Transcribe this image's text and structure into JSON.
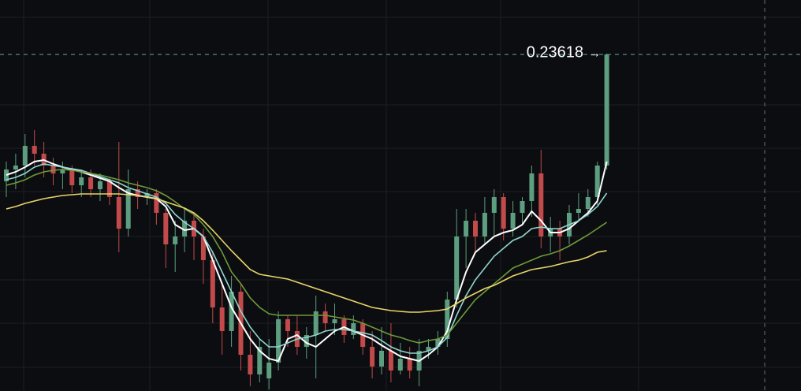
{
  "chart_data": {
    "type": "candlestick",
    "ylim": [
      0.1508,
      0.25
    ],
    "up_color": "#5e9e80",
    "down_color": "#c24a4a",
    "open": [
      0.204,
      0.207,
      0.208,
      0.213,
      0.211,
      0.208,
      0.206,
      0.207,
      0.203,
      0.205,
      0.202,
      0.204,
      0.2,
      0.192,
      0.202,
      0.2,
      0.201,
      0.196,
      0.188,
      0.19,
      0.194,
      0.19,
      0.184,
      0.172,
      0.166,
      0.176,
      0.16,
      0.155,
      0.154,
      0.158,
      0.169,
      0.166,
      0.162,
      0.165,
      0.171,
      0.168,
      0.169,
      0.165,
      0.168,
      0.162,
      0.157,
      0.161,
      0.156,
      0.159,
      0.156,
      0.161,
      0.162,
      0.164,
      0.174,
      0.19,
      0.194,
      0.19,
      0.196,
      0.2,
      0.192,
      0.196,
      0.199,
      0.206,
      0.19,
      0.192,
      0.19,
      0.196,
      0.197,
      0.2,
      0.208
    ],
    "high": [
      0.209,
      0.211,
      0.216,
      0.217,
      0.214,
      0.21,
      0.209,
      0.208,
      0.207,
      0.207,
      0.206,
      0.205,
      0.214,
      0.207,
      0.204,
      0.202,
      0.202,
      0.197,
      0.194,
      0.197,
      0.196,
      0.192,
      0.186,
      0.178,
      0.18,
      0.178,
      0.166,
      0.164,
      0.164,
      0.171,
      0.17,
      0.17,
      0.167,
      0.175,
      0.173,
      0.173,
      0.17,
      0.17,
      0.169,
      0.166,
      0.167,
      0.168,
      0.163,
      0.162,
      0.164,
      0.164,
      0.166,
      0.176,
      0.197,
      0.197,
      0.196,
      0.2,
      0.202,
      0.201,
      0.199,
      0.2,
      0.208,
      0.212,
      0.195,
      0.194,
      0.198,
      0.201,
      0.202,
      0.209,
      0.2364
    ],
    "low": [
      0.2,
      0.202,
      0.205,
      0.208,
      0.205,
      0.203,
      0.202,
      0.201,
      0.2,
      0.2,
      0.199,
      0.198,
      0.186,
      0.19,
      0.197,
      0.198,
      0.193,
      0.182,
      0.181,
      0.186,
      0.184,
      0.178,
      0.168,
      0.16,
      0.162,
      0.156,
      0.152,
      0.153,
      0.1512,
      0.156,
      0.162,
      0.16,
      0.159,
      0.154,
      0.166,
      0.165,
      0.163,
      0.164,
      0.16,
      0.154,
      0.155,
      0.153,
      0.155,
      0.154,
      0.152,
      0.159,
      0.16,
      0.162,
      0.172,
      0.182,
      0.186,
      0.188,
      0.19,
      0.189,
      0.19,
      0.193,
      0.195,
      0.187,
      0.186,
      0.184,
      0.188,
      0.194,
      0.195,
      0.198,
      0.207
    ],
    "close": [
      0.207,
      0.208,
      0.213,
      0.211,
      0.208,
      0.206,
      0.207,
      0.203,
      0.205,
      0.202,
      0.204,
      0.2,
      0.192,
      0.202,
      0.2,
      0.201,
      0.196,
      0.188,
      0.19,
      0.194,
      0.19,
      0.184,
      0.172,
      0.166,
      0.176,
      0.16,
      0.155,
      0.162,
      0.158,
      0.169,
      0.166,
      0.162,
      0.165,
      0.171,
      0.168,
      0.169,
      0.165,
      0.168,
      0.162,
      0.157,
      0.161,
      0.156,
      0.159,
      0.156,
      0.161,
      0.162,
      0.164,
      0.174,
      0.19,
      0.194,
      0.19,
      0.196,
      0.2,
      0.192,
      0.196,
      0.199,
      0.206,
      0.19,
      0.192,
      0.19,
      0.196,
      0.197,
      0.2,
      0.208,
      0.23618
    ],
    "series": [
      {
        "color": "#ffffff",
        "values": [
          0.2056,
          0.2064,
          0.2076,
          0.209,
          0.2094,
          0.2084,
          0.2076,
          0.207,
          0.2064,
          0.2056,
          0.2048,
          0.204,
          0.2024,
          0.201,
          0.2004,
          0.2,
          0.1996,
          0.1976,
          0.193,
          0.1916,
          0.192,
          0.19,
          0.184,
          0.178,
          0.172,
          0.168,
          0.164,
          0.161,
          0.159,
          0.1584,
          0.164,
          0.165,
          0.163,
          0.162,
          0.164,
          0.166,
          0.167,
          0.166,
          0.165,
          0.164,
          0.1624,
          0.161,
          0.1596,
          0.159,
          0.1584,
          0.16,
          0.162,
          0.166,
          0.174,
          0.181,
          0.186,
          0.188,
          0.19,
          0.191,
          0.1916,
          0.193,
          0.1964,
          0.194,
          0.191,
          0.191,
          0.192,
          0.194,
          0.196,
          0.199,
          0.209
        ]
      },
      {
        "color": "#8fd6cf",
        "values": [
          0.2044,
          0.205,
          0.206,
          0.2076,
          0.2084,
          0.208,
          0.2076,
          0.2072,
          0.2068,
          0.206,
          0.2052,
          0.2044,
          0.2036,
          0.2024,
          0.2016,
          0.2008,
          0.2,
          0.1984,
          0.1956,
          0.1936,
          0.192,
          0.19,
          0.186,
          0.181,
          0.176,
          0.171,
          0.167,
          0.164,
          0.162,
          0.162,
          0.163,
          0.164,
          0.1644,
          0.165,
          0.166,
          0.1664,
          0.1664,
          0.166,
          0.1656,
          0.165,
          0.1636,
          0.162,
          0.161,
          0.1604,
          0.1604,
          0.161,
          0.162,
          0.1644,
          0.17,
          0.175,
          0.179,
          0.182,
          0.185,
          0.187,
          0.189,
          0.19,
          0.192,
          0.1924,
          0.192,
          0.192,
          0.193,
          0.194,
          0.1956,
          0.1976,
          0.201
        ]
      },
      {
        "color": "#6e9a3a",
        "values": [
          0.203,
          0.2036,
          0.2044,
          0.2056,
          0.2064,
          0.2068,
          0.207,
          0.2068,
          0.2064,
          0.206,
          0.2056,
          0.205,
          0.2044,
          0.2036,
          0.203,
          0.2024,
          0.2016,
          0.2004,
          0.1988,
          0.197,
          0.1956,
          0.193,
          0.19,
          0.186,
          0.181,
          0.178,
          0.1744,
          0.172,
          0.1704,
          0.17,
          0.17,
          0.17,
          0.17,
          0.17,
          0.17,
          0.1696,
          0.1692,
          0.1688,
          0.168,
          0.167,
          0.166,
          0.165,
          0.1644,
          0.1636,
          0.163,
          0.1636,
          0.164,
          0.165,
          0.168,
          0.171,
          0.174,
          0.176,
          0.178,
          0.18,
          0.182,
          0.183,
          0.184,
          0.185,
          0.1856,
          0.1864,
          0.1876,
          0.189,
          0.1904,
          0.192,
          0.1936
        ]
      },
      {
        "color": "#e8d56a",
        "values": [
          0.197,
          0.1976,
          0.1984,
          0.199,
          0.1996,
          0.2,
          0.2004,
          0.2006,
          0.2008,
          0.2008,
          0.2008,
          0.2008,
          0.2008,
          0.2006,
          0.2004,
          0.2,
          0.1996,
          0.1988,
          0.198,
          0.1972,
          0.196,
          0.194,
          0.1916,
          0.189,
          0.1864,
          0.184,
          0.1816,
          0.1804,
          0.18,
          0.1796,
          0.1792,
          0.1784,
          0.1776,
          0.1768,
          0.176,
          0.1752,
          0.1744,
          0.1736,
          0.1728,
          0.172,
          0.1716,
          0.1712,
          0.171,
          0.1708,
          0.1708,
          0.171,
          0.1712,
          0.1716,
          0.173,
          0.1744,
          0.1756,
          0.1768,
          0.1776,
          0.1788,
          0.18,
          0.1808,
          0.1816,
          0.182,
          0.1824,
          0.183,
          0.1836,
          0.184,
          0.1848,
          0.186,
          0.1864
        ]
      }
    ]
  }
}
